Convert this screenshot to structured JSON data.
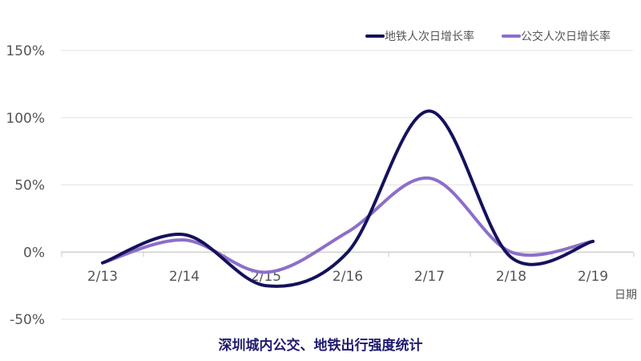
{
  "chart_data": {
    "type": "line",
    "title": "深圳城内公交、地铁出行强度统计",
    "xlabel": "日期",
    "ylabel": "",
    "categories": [
      "2/13",
      "2/14",
      "2/15",
      "2/16",
      "2/17",
      "2/18",
      "2/19"
    ],
    "ylim": [
      -50,
      150
    ],
    "yticks": [
      -50,
      0,
      50,
      100,
      150
    ],
    "ytick_labels": [
      "-50%",
      "0%",
      "50%",
      "100%",
      "150%"
    ],
    "grid": true,
    "legend_position": "top-right",
    "series": [
      {
        "name": "地铁人次日增长率",
        "color": "#14125c",
        "values": [
          -8,
          13,
          -25,
          0,
          105,
          -4,
          8
        ]
      },
      {
        "name": "公交人次日增长率",
        "color": "#8c6fc8",
        "values": [
          -8,
          9,
          -15,
          15,
          55,
          0,
          8
        ]
      }
    ]
  }
}
